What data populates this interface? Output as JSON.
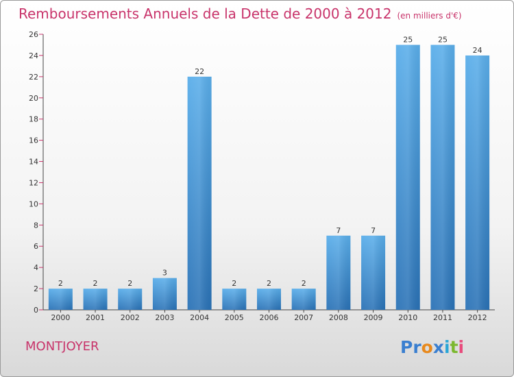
{
  "title": "Remboursements Annuels de la Dette de 2000 à 2012",
  "unit_note": "(en milliers d'€)",
  "place": "MONTJOYER",
  "logo": {
    "letters": [
      {
        "ch": "P",
        "color": "#3a7fd0"
      },
      {
        "ch": "r",
        "color": "#3a7fd0"
      },
      {
        "ch": "o",
        "color": "#e8891c"
      },
      {
        "ch": "x",
        "color": "#3a7fd0"
      },
      {
        "ch": "i",
        "color": "#2aa6d6"
      },
      {
        "ch": "t",
        "color": "#7cb82f"
      },
      {
        "ch": "i",
        "color": "#e84b7c"
      }
    ]
  },
  "colors": {
    "title": "#c8336a",
    "bar": "#3b8fd8",
    "axis": "#444444",
    "grid_tick": "#c8336a"
  },
  "chart_data": {
    "type": "bar",
    "title": "Remboursements Annuels de la Dette de 2000 à 2012",
    "categories": [
      "2000",
      "2001",
      "2002",
      "2003",
      "2004",
      "2005",
      "2006",
      "2007",
      "2008",
      "2009",
      "2010",
      "2011",
      "2012"
    ],
    "values": [
      2,
      2,
      2,
      3,
      22,
      2,
      2,
      2,
      7,
      7,
      25,
      25,
      24
    ],
    "ylim": [
      0,
      26
    ],
    "yticks": [
      0,
      2,
      4,
      6,
      8,
      10,
      12,
      14,
      16,
      18,
      20,
      22,
      24,
      26
    ],
    "xlabel": "",
    "ylabel": "",
    "grid": false,
    "data_labels": true
  }
}
